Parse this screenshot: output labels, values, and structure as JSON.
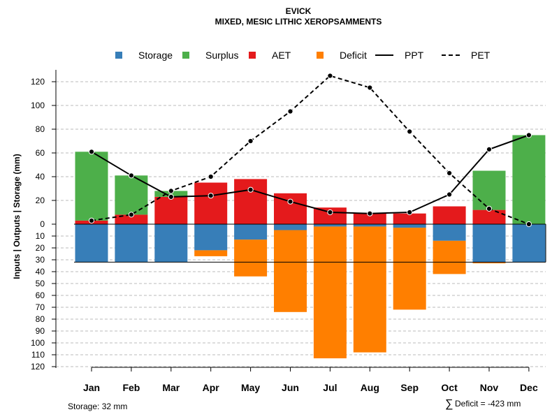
{
  "chart_data": {
    "type": "bar",
    "title": "EVICK",
    "subtitle": "MIXED, MESIC LITHIC XEROPSAMMENTS",
    "ylabel": "Inputs | Outputs | Storage    (mm)",
    "xlabel": "",
    "categories": [
      "Jan",
      "Feb",
      "Mar",
      "Apr",
      "May",
      "Jun",
      "Jul",
      "Aug",
      "Sep",
      "Oct",
      "Nov",
      "Dec"
    ],
    "ylim": [
      -120,
      130
    ],
    "grid": true,
    "legend_position": "top",
    "y_ticks": [
      -120,
      -110,
      -100,
      -90,
      -80,
      -70,
      -60,
      -50,
      -40,
      -30,
      -20,
      -10,
      0,
      20,
      40,
      60,
      80,
      100,
      120
    ],
    "y_tick_labels": [
      "120",
      "110",
      "100",
      "90",
      "80",
      "70",
      "60",
      "50",
      "40",
      "30",
      "20",
      "10",
      "0",
      "20",
      "40",
      "60",
      "80",
      "100",
      "120"
    ],
    "legend": [
      {
        "name": "Storage",
        "type": "box",
        "color": "#377EB8"
      },
      {
        "name": "Surplus",
        "type": "box",
        "color": "#4DAF4A"
      },
      {
        "name": "AET",
        "type": "box",
        "color": "#E41A1C"
      },
      {
        "name": "Deficit",
        "type": "box",
        "color": "#FF7F00"
      },
      {
        "name": "PPT",
        "type": "solid-line",
        "color": "#000000"
      },
      {
        "name": "PET",
        "type": "dashed-line",
        "color": "#000000"
      }
    ],
    "series": [
      {
        "name": "AET",
        "color": "#E41A1C",
        "values": [
          3,
          8,
          23,
          35,
          38,
          26,
          14,
          9,
          9,
          15,
          12,
          0
        ]
      },
      {
        "name": "Surplus",
        "color": "#4DAF4A",
        "values": [
          58,
          33,
          5,
          0,
          0,
          0,
          0,
          0,
          0,
          0,
          33,
          75
        ]
      },
      {
        "name": "Storage",
        "color": "#377EB8",
        "values": [
          32,
          32,
          32,
          22,
          13,
          5,
          2,
          2,
          3,
          14,
          32,
          32
        ]
      },
      {
        "name": "Deficit",
        "color": "#FF7F00",
        "values": [
          0,
          0,
          0,
          5,
          31,
          69,
          111,
          106,
          69,
          28,
          1,
          0
        ]
      },
      {
        "name": "PPT",
        "color": "#000000",
        "values": [
          61,
          41,
          23,
          24,
          29,
          19,
          10,
          9,
          10,
          25,
          63,
          75
        ]
      },
      {
        "name": "PET",
        "color": "#000000",
        "values": [
          3,
          8,
          28,
          40,
          70,
          95,
          125,
          115,
          78,
          43,
          13,
          0
        ]
      }
    ],
    "storage_capacity": 32,
    "annotations": {
      "storage": "Storage: 32 mm",
      "deficit_symbol": "∑",
      "deficit": "Deficit = -423 mm"
    }
  }
}
